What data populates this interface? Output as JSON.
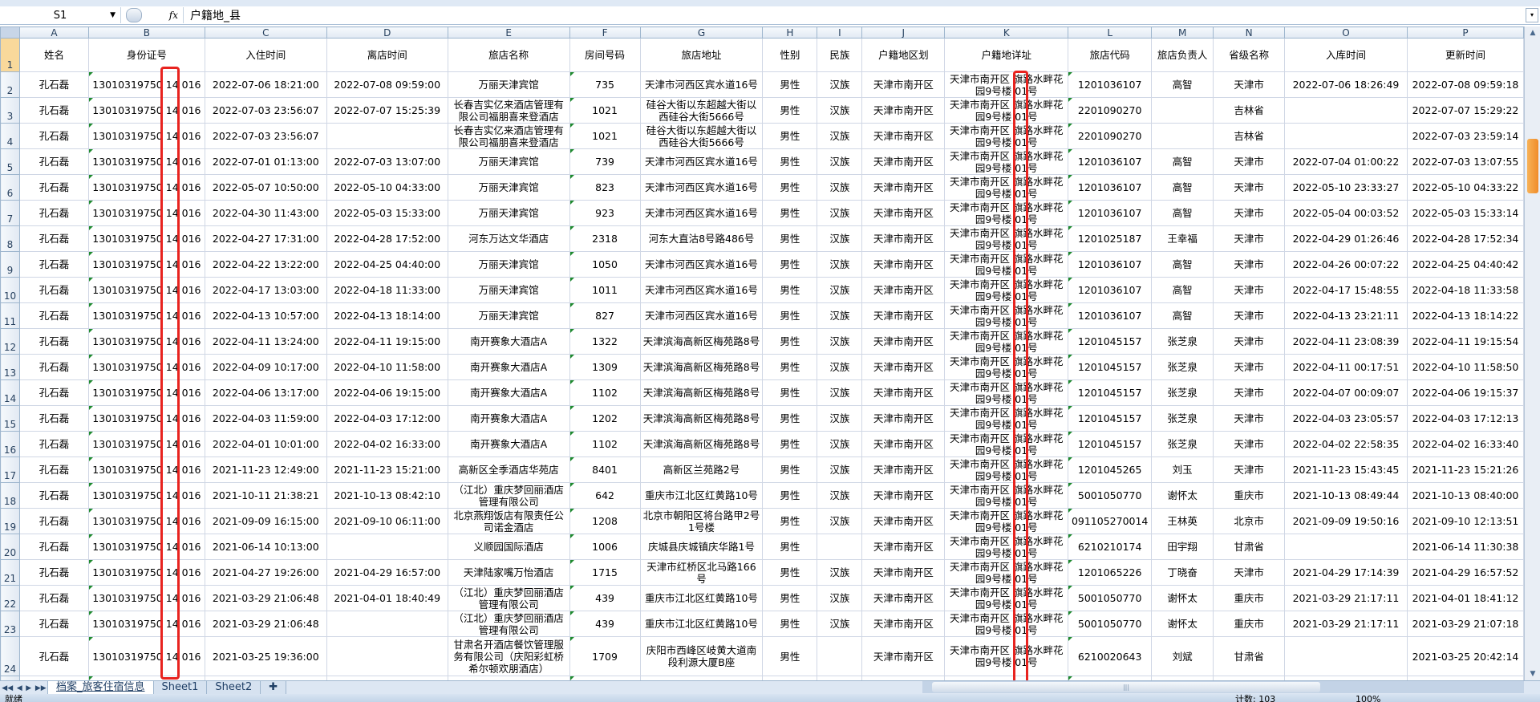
{
  "formula_bar": {
    "name_box": "S1",
    "fx_label": "fx",
    "value": "户籍地_县"
  },
  "columns": [
    "A",
    "B",
    "C",
    "D",
    "E",
    "F",
    "G",
    "H",
    "I",
    "J",
    "K",
    "L",
    "M",
    "N",
    "O",
    "P"
  ],
  "header_row": [
    "姓名",
    "身份证号",
    "入住时间",
    "离店时间",
    "旅店名称",
    "房间号码",
    "旅店地址",
    "性别",
    "民族",
    "户籍地区划",
    "户籍地详址",
    "旅店代码",
    "旅店负责人",
    "省级名称",
    "入库时间",
    "更新时间"
  ],
  "rows": [
    [
      "孔石磊",
      "13010319750 14 016",
      "2022-07-06 18:21:00",
      "2022-07-08 09:59:00",
      "万丽天津宾馆",
      "735",
      "天津市河西区宾水道16号",
      "男性",
      "汉族",
      "天津市南开区",
      "天津市南开区 旗路水畔花园9号楼 01号",
      "1201036107",
      "高智",
      "天津市",
      "2022-07-06 18:26:49",
      "2022-07-08 09:59:18"
    ],
    [
      "孔石磊",
      "13010319750 14 016",
      "2022-07-03 23:56:07",
      "2022-07-07 15:25:39",
      "长春吉实亿来酒店管理有限公司福朋喜来登酒店",
      "1021",
      "硅谷大街以东超越大街以西硅谷大街5666号",
      "男性",
      "汉族",
      "天津市南开区",
      "天津市南开区 旗路水畔花园9号楼 01号",
      "2201090270",
      "",
      "吉林省",
      "",
      "2022-07-07 15:29:22"
    ],
    [
      "孔石磊",
      "13010319750 14 016",
      "2022-07-03 23:56:07",
      "",
      "长春吉实亿来酒店管理有限公司福朋喜来登酒店",
      "1021",
      "硅谷大街以东超越大街以西硅谷大街5666号",
      "男性",
      "汉族",
      "天津市南开区",
      "天津市南开区 旗路水畔花园9号楼 01号",
      "2201090270",
      "",
      "吉林省",
      "",
      "2022-07-03 23:59:14"
    ],
    [
      "孔石磊",
      "13010319750 14 016",
      "2022-07-01 01:13:00",
      "2022-07-03 13:07:00",
      "万丽天津宾馆",
      "739",
      "天津市河西区宾水道16号",
      "男性",
      "汉族",
      "天津市南开区",
      "天津市南开区 旗路水畔花园9号楼 01号",
      "1201036107",
      "高智",
      "天津市",
      "2022-07-04 01:00:22",
      "2022-07-03 13:07:55"
    ],
    [
      "孔石磊",
      "13010319750 14 016",
      "2022-05-07 10:50:00",
      "2022-05-10 04:33:00",
      "万丽天津宾馆",
      "823",
      "天津市河西区宾水道16号",
      "男性",
      "汉族",
      "天津市南开区",
      "天津市南开区 旗路水畔花园9号楼 01号",
      "1201036107",
      "高智",
      "天津市",
      "2022-05-10 23:33:27",
      "2022-05-10 04:33:22"
    ],
    [
      "孔石磊",
      "13010319750 14 016",
      "2022-04-30 11:43:00",
      "2022-05-03 15:33:00",
      "万丽天津宾馆",
      "923",
      "天津市河西区宾水道16号",
      "男性",
      "汉族",
      "天津市南开区",
      "天津市南开区 旗路水畔花园9号楼 01号",
      "1201036107",
      "高智",
      "天津市",
      "2022-05-04 00:03:52",
      "2022-05-03 15:33:14"
    ],
    [
      "孔石磊",
      "13010319750 14 016",
      "2022-04-27 17:31:00",
      "2022-04-28 17:52:00",
      "河东万达文华酒店",
      "2318",
      "河东大直沽8号路486号",
      "男性",
      "汉族",
      "天津市南开区",
      "天津市南开区 旗路水畔花园9号楼 01号",
      "1201025187",
      "王幸福",
      "天津市",
      "2022-04-29 01:26:46",
      "2022-04-28 17:52:34"
    ],
    [
      "孔石磊",
      "13010319750 14 016",
      "2022-04-22 13:22:00",
      "2022-04-25 04:40:00",
      "万丽天津宾馆",
      "1050",
      "天津市河西区宾水道16号",
      "男性",
      "汉族",
      "天津市南开区",
      "天津市南开区 旗路水畔花园9号楼 01号",
      "1201036107",
      "高智",
      "天津市",
      "2022-04-26 00:07:22",
      "2022-04-25 04:40:42"
    ],
    [
      "孔石磊",
      "13010319750 14 016",
      "2022-04-17 13:03:00",
      "2022-04-18 11:33:00",
      "万丽天津宾馆",
      "1011",
      "天津市河西区宾水道16号",
      "男性",
      "汉族",
      "天津市南开区",
      "天津市南开区 旗路水畔花园9号楼 01号",
      "1201036107",
      "高智",
      "天津市",
      "2022-04-17 15:48:55",
      "2022-04-18 11:33:58"
    ],
    [
      "孔石磊",
      "13010319750 14 016",
      "2022-04-13 10:57:00",
      "2022-04-13 18:14:00",
      "万丽天津宾馆",
      "827",
      "天津市河西区宾水道16号",
      "男性",
      "汉族",
      "天津市南开区",
      "天津市南开区 旗路水畔花园9号楼 01号",
      "1201036107",
      "高智",
      "天津市",
      "2022-04-13 23:21:11",
      "2022-04-13 18:14:22"
    ],
    [
      "孔石磊",
      "13010319750 14 016",
      "2022-04-11 13:24:00",
      "2022-04-11 19:15:00",
      "南开赛象大酒店A",
      "1322",
      "天津滨海高新区梅苑路8号",
      "男性",
      "汉族",
      "天津市南开区",
      "天津市南开区 旗路水畔花园9号楼 01号",
      "1201045157",
      "张芝泉",
      "天津市",
      "2022-04-11 23:08:39",
      "2022-04-11 19:15:54"
    ],
    [
      "孔石磊",
      "13010319750 14 016",
      "2022-04-09 10:17:00",
      "2022-04-10 11:58:00",
      "南开赛象大酒店A",
      "1309",
      "天津滨海高新区梅苑路8号",
      "男性",
      "汉族",
      "天津市南开区",
      "天津市南开区 旗路水畔花园9号楼 01号",
      "1201045157",
      "张芝泉",
      "天津市",
      "2022-04-11 00:17:51",
      "2022-04-10 11:58:50"
    ],
    [
      "孔石磊",
      "13010319750 14 016",
      "2022-04-06 13:17:00",
      "2022-04-06 19:15:00",
      "南开赛象大酒店A",
      "1102",
      "天津滨海高新区梅苑路8号",
      "男性",
      "汉族",
      "天津市南开区",
      "天津市南开区 旗路水畔花园9号楼 01号",
      "1201045157",
      "张芝泉",
      "天津市",
      "2022-04-07 00:09:07",
      "2022-04-06 19:15:37"
    ],
    [
      "孔石磊",
      "13010319750 14 016",
      "2022-04-03 11:59:00",
      "2022-04-03 17:12:00",
      "南开赛象大酒店A",
      "1202",
      "天津滨海高新区梅苑路8号",
      "男性",
      "汉族",
      "天津市南开区",
      "天津市南开区 旗路水畔花园9号楼 01号",
      "1201045157",
      "张芝泉",
      "天津市",
      "2022-04-03 23:05:57",
      "2022-04-03 17:12:13"
    ],
    [
      "孔石磊",
      "13010319750 14 016",
      "2022-04-01 10:01:00",
      "2022-04-02 16:33:00",
      "南开赛象大酒店A",
      "1102",
      "天津滨海高新区梅苑路8号",
      "男性",
      "汉族",
      "天津市南开区",
      "天津市南开区 旗路水畔花园9号楼 01号",
      "1201045157",
      "张芝泉",
      "天津市",
      "2022-04-02 22:58:35",
      "2022-04-02 16:33:40"
    ],
    [
      "孔石磊",
      "13010319750 14 016",
      "2021-11-23 12:49:00",
      "2021-11-23 15:21:00",
      "高新区全季酒店华苑店",
      "8401",
      "高新区兰苑路2号",
      "男性",
      "汉族",
      "天津市南开区",
      "天津市南开区 旗路水畔花园9号楼 01号",
      "1201045265",
      "刘玉",
      "天津市",
      "2021-11-23 15:43:45",
      "2021-11-23 15:21:26"
    ],
    [
      "孔石磊",
      "13010319750 14 016",
      "2021-10-11 21:38:21",
      "2021-10-13 08:42:10",
      "（江北）重庆梦回丽酒店管理有限公司",
      "642",
      "重庆市江北区红黄路10号",
      "男性",
      "汉族",
      "天津市南开区",
      "天津市南开区 旗路水畔花园9号楼 01号",
      "5001050770",
      "谢怀太",
      "重庆市",
      "2021-10-13 08:49:44",
      "2021-10-13 08:40:00"
    ],
    [
      "孔石磊",
      "13010319750 14 016",
      "2021-09-09 16:15:00",
      "2021-09-10 06:11:00",
      "北京燕翔饭店有限责任公司诺金酒店",
      "1208",
      "北京市朝阳区将台路甲2号1号楼",
      "男性",
      "汉族",
      "天津市南开区",
      "天津市南开区 旗路水畔花园9号楼 01号",
      "091105270014",
      "王林英",
      "北京市",
      "2021-09-09 19:50:16",
      "2021-09-10 12:13:51"
    ],
    [
      "孔石磊",
      "13010319750 14 016",
      "2021-06-14 10:13:00",
      "",
      "义顺园国际酒店",
      "1006",
      "庆城县庆城镇庆华路1号",
      "男性",
      "",
      "天津市南开区",
      "天津市南开区 旗路水畔花园9号楼 01号",
      "6210210174",
      "田宇翔",
      "甘肃省",
      "",
      "2021-06-14 11:30:38"
    ],
    [
      "孔石磊",
      "13010319750 14 016",
      "2021-04-27 19:26:00",
      "2021-04-29 16:57:00",
      "天津陆家嘴万怡酒店",
      "1715",
      "天津市红桥区北马路166号",
      "男性",
      "汉族",
      "天津市南开区",
      "天津市南开区 旗路水畔花园9号楼 01号",
      "1201065226",
      "丁晓奋",
      "天津市",
      "2021-04-29 17:14:39",
      "2021-04-29 16:57:52"
    ],
    [
      "孔石磊",
      "13010319750 14 016",
      "2021-03-29 21:06:48",
      "2021-04-01 18:40:49",
      "（江北）重庆梦回丽酒店管理有限公司",
      "439",
      "重庆市江北区红黄路10号",
      "男性",
      "汉族",
      "天津市南开区",
      "天津市南开区 旗路水畔花园9号楼 01号",
      "5001050770",
      "谢怀太",
      "重庆市",
      "2021-03-29 21:17:11",
      "2021-04-01 18:41:12"
    ],
    [
      "孔石磊",
      "13010319750 14 016",
      "2021-03-29 21:06:48",
      "",
      "（江北）重庆梦回丽酒店管理有限公司",
      "439",
      "重庆市江北区红黄路10号",
      "男性",
      "汉族",
      "天津市南开区",
      "天津市南开区 旗路水畔花园9号楼 01号",
      "5001050770",
      "谢怀太",
      "重庆市",
      "2021-03-29 21:17:11",
      "2021-03-29 21:07:18"
    ],
    [
      "孔石磊",
      "13010319750 14 016",
      "2021-03-25 19:36:00",
      "",
      "甘肃名开酒店餐饮管理服务有限公司（庆阳彩虹桥希尔顿欢朋酒店）",
      "1709",
      "庆阳市西峰区岐黄大道南段利源大厦B座",
      "男性",
      "",
      "天津市南开区",
      "天津市南开区 旗路水畔花园9号楼 01号",
      "6210020643",
      "刘斌",
      "甘肃省",
      "",
      "2021-03-25 20:42:14"
    ]
  ],
  "sheet_tabs": [
    "档案_旅客住宿信息",
    "Sheet1",
    "Sheet2"
  ],
  "active_tab": "档案_旅客住宿信息",
  "status": {
    "ready": "就绪",
    "count": "计数: 103",
    "zoom": "100%"
  },
  "colors": {
    "highlight": "#e8231f",
    "scroll_thumb": "#f08c2a",
    "selected_row_header": "#f9d99b"
  }
}
